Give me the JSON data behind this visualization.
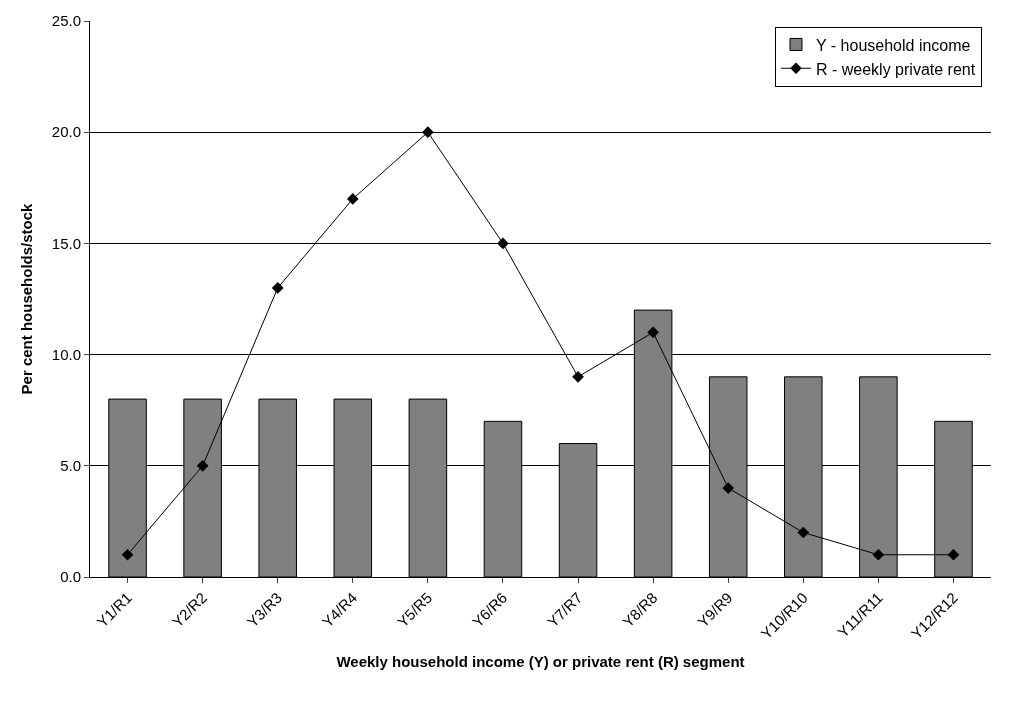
{
  "chart_data": {
    "type": "bar",
    "xlabel": "Weekly household income (Y) or private rent (R) segment",
    "ylabel": "Per cent households/stock",
    "categories": [
      "Y1/R1",
      "Y2/R2",
      "Y3/R3",
      "Y4/R4",
      "Y5/R5",
      "Y6/R6",
      "Y7/R7",
      "Y8/R8",
      "Y9/R9",
      "Y10/R10",
      "Y11/R11",
      "Y12/R12"
    ],
    "series": [
      {
        "name": "Y - household income",
        "color": "#808080",
        "values": [
          8,
          8,
          8,
          8,
          8,
          7,
          6,
          12,
          9,
          9,
          9,
          7
        ]
      },
      {
        "name": "R - weekly private rent",
        "type": "line",
        "color": "#000000",
        "marker": "diamond",
        "values": [
          1,
          5,
          13,
          17,
          20,
          15,
          9,
          11,
          4,
          2,
          1,
          1
        ]
      }
    ],
    "ylim": [
      0,
      25
    ],
    "yticks": [
      {
        "value": 0,
        "label": "0.0"
      },
      {
        "value": 5,
        "label": "5.0"
      },
      {
        "value": 10,
        "label": "10.0"
      },
      {
        "value": 15,
        "label": "15.0"
      },
      {
        "value": 20,
        "label": "20.0"
      },
      {
        "value": 25,
        "label": "25.0"
      }
    ],
    "grid": "y",
    "legend": "top right"
  }
}
